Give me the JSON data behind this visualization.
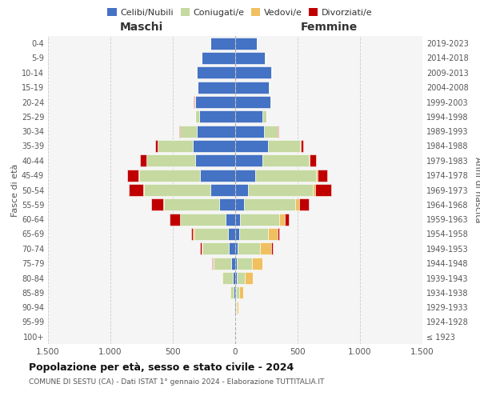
{
  "age_groups": [
    "100+",
    "95-99",
    "90-94",
    "85-89",
    "80-84",
    "75-79",
    "70-74",
    "65-69",
    "60-64",
    "55-59",
    "50-54",
    "45-49",
    "40-44",
    "35-39",
    "30-34",
    "25-29",
    "20-24",
    "15-19",
    "10-14",
    "5-9",
    "0-4"
  ],
  "birth_years": [
    "≤ 1923",
    "1924-1928",
    "1929-1933",
    "1934-1938",
    "1939-1943",
    "1944-1948",
    "1949-1953",
    "1954-1958",
    "1959-1963",
    "1964-1968",
    "1969-1973",
    "1974-1978",
    "1979-1983",
    "1984-1988",
    "1989-1993",
    "1994-1998",
    "1999-2003",
    "2004-2008",
    "2009-2013",
    "2014-2018",
    "2019-2023"
  ],
  "maschi": {
    "celibi": [
      2,
      2,
      5,
      10,
      20,
      30,
      50,
      60,
      80,
      130,
      200,
      280,
      320,
      340,
      310,
      290,
      320,
      300,
      310,
      270,
      200
    ],
    "coniugati": [
      0,
      3,
      8,
      30,
      80,
      140,
      210,
      270,
      360,
      440,
      530,
      490,
      390,
      280,
      130,
      30,
      10,
      3,
      2,
      1,
      0
    ],
    "vedovi": [
      0,
      1,
      2,
      5,
      10,
      10,
      10,
      10,
      5,
      5,
      5,
      3,
      2,
      2,
      1,
      0,
      0,
      0,
      0,
      0,
      0
    ],
    "divorziati": [
      0,
      0,
      0,
      0,
      0,
      5,
      10,
      15,
      80,
      100,
      120,
      90,
      50,
      20,
      5,
      2,
      2,
      1,
      0,
      0,
      0
    ]
  },
  "femmine": {
    "nubili": [
      2,
      2,
      5,
      5,
      10,
      15,
      20,
      30,
      40,
      70,
      100,
      160,
      220,
      260,
      230,
      220,
      280,
      270,
      290,
      240,
      170
    ],
    "coniugate": [
      0,
      3,
      10,
      30,
      70,
      120,
      180,
      230,
      310,
      410,
      520,
      490,
      370,
      260,
      110,
      30,
      10,
      3,
      2,
      1,
      0
    ],
    "vedove": [
      0,
      3,
      10,
      30,
      60,
      80,
      90,
      80,
      50,
      30,
      20,
      10,
      5,
      3,
      2,
      1,
      0,
      0,
      0,
      0,
      0
    ],
    "divorziate": [
      0,
      0,
      0,
      0,
      0,
      5,
      10,
      10,
      30,
      80,
      130,
      80,
      50,
      20,
      5,
      2,
      1,
      1,
      0,
      0,
      0
    ]
  },
  "colors": {
    "celibi": "#4472C4",
    "coniugati": "#c5d9a0",
    "vedovi": "#f0c060",
    "divorziati": "#c00000"
  },
  "xlim": 1500,
  "title": "Popolazione per età, sesso e stato civile - 2024",
  "subtitle": "COMUNE DI SESTU (CA) - Dati ISTAT 1° gennaio 2024 - Elaborazione TUTTITALIA.IT",
  "xlabel_left": "Maschi",
  "xlabel_right": "Femmine",
  "ylabel_left": "Fasce di età",
  "ylabel_right": "Anni di nascita",
  "legend_labels": [
    "Celibi/Nubili",
    "Coniugati/e",
    "Vedovi/e",
    "Divorziati/e"
  ],
  "tick_positions": [
    -1500,
    -1000,
    -500,
    0,
    500,
    1000,
    1500
  ],
  "tick_labels": [
    "1.500",
    "1.000",
    "500",
    "0",
    "500",
    "1.000",
    "1.500"
  ],
  "bg_color": "#f5f5f5"
}
